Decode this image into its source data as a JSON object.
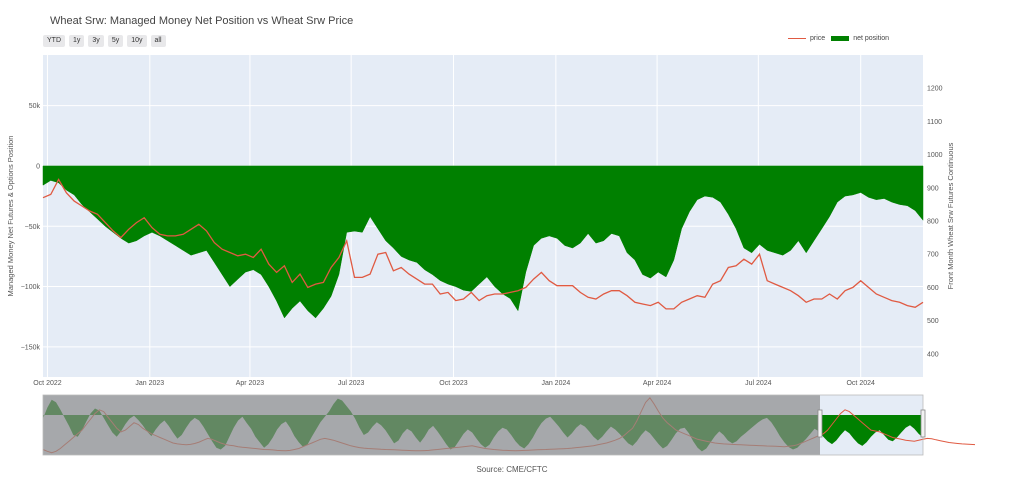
{
  "title": "Wheat Srw: Managed Money Net Position vs Wheat Srw Price",
  "range_buttons": [
    "YTD",
    "1y",
    "3y",
    "5y",
    "10y",
    "all"
  ],
  "legend": {
    "price": "price",
    "net": "net position"
  },
  "source": "Source: CME/CFTC",
  "colors": {
    "price": "#e05a42",
    "net": "#008000",
    "plot_bg": "#e5ecf6",
    "nav_mask": "#8c8c8c"
  },
  "chart_data": {
    "type": "area",
    "title": "Wheat Srw: Managed Money Net Position vs Wheat Srw Price",
    "ylabel": "Managed Money Net Futures & Options Position",
    "y2label": "Front Month Wheat Srw Futures Continuous",
    "xlim": [
      "2022-09-27",
      "2024-11-26"
    ],
    "ylim": [
      -175000,
      92000
    ],
    "y2lim": [
      330,
      1300
    ],
    "x_ticks": [
      "Oct 2022",
      "Jan 2023",
      "Apr 2023",
      "Jul 2023",
      "Oct 2023",
      "Jan 2024",
      "Apr 2024",
      "Jul 2024",
      "Oct 2024"
    ],
    "x_tick_dates": [
      "2022-10-01",
      "2023-01-01",
      "2023-04-01",
      "2023-07-01",
      "2023-10-01",
      "2024-01-01",
      "2024-04-01",
      "2024-07-01",
      "2024-10-01"
    ],
    "y_ticks": [
      50000,
      0,
      -50000,
      -100000,
      -150000
    ],
    "y_tick_labels": [
      "50k",
      "0",
      "−50k",
      "−100k",
      "−150k"
    ],
    "y2_ticks": [
      400,
      500,
      600,
      700,
      800,
      900,
      1000,
      1100,
      1200
    ],
    "dates": [
      "2022-09-27",
      "2022-10-04",
      "2022-10-11",
      "2022-10-18",
      "2022-10-25",
      "2022-11-01",
      "2022-11-08",
      "2022-11-15",
      "2022-11-22",
      "2022-11-29",
      "2022-12-06",
      "2022-12-13",
      "2022-12-20",
      "2022-12-27",
      "2023-01-03",
      "2023-01-10",
      "2023-01-17",
      "2023-01-24",
      "2023-01-31",
      "2023-02-07",
      "2023-02-14",
      "2023-02-21",
      "2023-02-28",
      "2023-03-07",
      "2023-03-14",
      "2023-03-21",
      "2023-03-28",
      "2023-04-04",
      "2023-04-11",
      "2023-04-18",
      "2023-04-25",
      "2023-05-02",
      "2023-05-09",
      "2023-05-16",
      "2023-05-23",
      "2023-05-30",
      "2023-06-06",
      "2023-06-13",
      "2023-06-20",
      "2023-06-27",
      "2023-07-04",
      "2023-07-11",
      "2023-07-18",
      "2023-07-25",
      "2023-08-01",
      "2023-08-08",
      "2023-08-15",
      "2023-08-22",
      "2023-08-29",
      "2023-09-05",
      "2023-09-12",
      "2023-09-19",
      "2023-09-26",
      "2023-10-03",
      "2023-10-10",
      "2023-10-17",
      "2023-10-24",
      "2023-10-31",
      "2023-11-07",
      "2023-11-14",
      "2023-11-21",
      "2023-11-28",
      "2023-12-05",
      "2023-12-12",
      "2023-12-19",
      "2023-12-26",
      "2024-01-02",
      "2024-01-09",
      "2024-01-16",
      "2024-01-23",
      "2024-01-30",
      "2024-02-06",
      "2024-02-13",
      "2024-02-20",
      "2024-02-27",
      "2024-03-05",
      "2024-03-12",
      "2024-03-19",
      "2024-03-26",
      "2024-04-02",
      "2024-04-09",
      "2024-04-16",
      "2024-04-23",
      "2024-04-30",
      "2024-05-07",
      "2024-05-14",
      "2024-05-21",
      "2024-05-28",
      "2024-06-04",
      "2024-06-11",
      "2024-06-18",
      "2024-06-25",
      "2024-07-02",
      "2024-07-09",
      "2024-07-16",
      "2024-07-23",
      "2024-07-30",
      "2024-08-06",
      "2024-08-13",
      "2024-08-20",
      "2024-08-27",
      "2024-09-03",
      "2024-09-10",
      "2024-09-17",
      "2024-09-24",
      "2024-10-01",
      "2024-10-08",
      "2024-10-15",
      "2024-10-22",
      "2024-10-29",
      "2024-11-05",
      "2024-11-12",
      "2024-11-19",
      "2024-11-26"
    ],
    "series": [
      {
        "name": "net position",
        "axis": "y",
        "values": [
          -16000,
          -12000,
          -14000,
          -20000,
          -24000,
          -32000,
          -38000,
          -44000,
          -50000,
          -55000,
          -60000,
          -64000,
          -62000,
          -58000,
          -55000,
          -58000,
          -62000,
          -66000,
          -70000,
          -74000,
          -72000,
          -70000,
          -80000,
          -90000,
          -100000,
          -94000,
          -88000,
          -86000,
          -90000,
          -100000,
          -112000,
          -126000,
          -118000,
          -112000,
          -120000,
          -126000,
          -118000,
          -108000,
          -90000,
          -55000,
          -54000,
          -55000,
          -42000,
          -52000,
          -62000,
          -68000,
          -75000,
          -78000,
          -80000,
          -86000,
          -90000,
          -95000,
          -98000,
          -100000,
          -103000,
          -104000,
          -98000,
          -92000,
          -100000,
          -106000,
          -110000,
          -120000,
          -88000,
          -66000,
          -60000,
          -58000,
          -60000,
          -66000,
          -68000,
          -64000,
          -56000,
          -64000,
          -62000,
          -56000,
          -58000,
          -72000,
          -78000,
          -90000,
          -93000,
          -88000,
          -92000,
          -78000,
          -52000,
          -38000,
          -28000,
          -25000,
          -26000,
          -30000,
          -40000,
          -52000,
          -68000,
          -72000,
          -65000,
          -70000,
          -72000,
          -74000,
          -70000,
          -62000,
          -72000,
          -62000,
          -52000,
          -42000,
          -30000,
          -25000,
          -24000,
          -22000,
          -26000,
          -28000,
          -27000,
          -30000,
          -32000,
          -33000,
          -37000,
          -45000
        ]
      },
      {
        "name": "price",
        "axis": "y2",
        "values": [
          870,
          880,
          925,
          885,
          860,
          845,
          830,
          820,
          795,
          770,
          750,
          775,
          795,
          810,
          780,
          760,
          755,
          755,
          760,
          775,
          790,
          770,
          735,
          715,
          705,
          695,
          700,
          690,
          715,
          670,
          645,
          665,
          615,
          640,
          600,
          610,
          615,
          660,
          690,
          740,
          630,
          630,
          640,
          700,
          705,
          650,
          660,
          640,
          625,
          610,
          610,
          580,
          585,
          560,
          565,
          585,
          560,
          575,
          580,
          580,
          585,
          590,
          600,
          625,
          645,
          620,
          605,
          605,
          605,
          585,
          570,
          565,
          580,
          590,
          590,
          575,
          555,
          550,
          545,
          555,
          535,
          535,
          555,
          565,
          575,
          570,
          610,
          620,
          660,
          665,
          685,
          670,
          700,
          620,
          610,
          600,
          590,
          575,
          555,
          565,
          565,
          580,
          565,
          590,
          600,
          620,
          600,
          580,
          570,
          560,
          555,
          545,
          540,
          555
        ]
      }
    ],
    "navigator": {
      "series": [
        {
          "name": "net position",
          "values": [
            -10000,
            20000,
            42000,
            35000,
            15000,
            -8000,
            -30000,
            -55000,
            -60000,
            -42000,
            -18000,
            5000,
            18000,
            12000,
            -8000,
            -28000,
            -48000,
            -60000,
            -45000,
            -25000,
            -10000,
            -2000,
            -14000,
            -28000,
            -45000,
            -58000,
            -40000,
            -25000,
            -15000,
            -30000,
            -48000,
            -65000,
            -55000,
            -35000,
            -18000,
            -8000,
            -15000,
            -32000,
            -52000,
            -72000,
            -90000,
            -95000,
            -85000,
            -60000,
            -35000,
            -15000,
            -5000,
            -22000,
            -38000,
            -60000,
            -75000,
            -90000,
            -80000,
            -62000,
            -40000,
            -25000,
            -18000,
            -35000,
            -58000,
            -75000,
            -88000,
            -82000,
            -60000,
            -40000,
            -20000,
            -5000,
            10000,
            30000,
            45000,
            40000,
            25000,
            10000,
            -10000,
            -35000,
            -55000,
            -48000,
            -32000,
            -20000,
            -28000,
            -42000,
            -60000,
            -78000,
            -70000,
            -50000,
            -38000,
            -45000,
            -62000,
            -76000,
            -60000,
            -40000,
            -30000,
            -45000,
            -62000,
            -80000,
            -95000,
            -88000,
            -70000,
            -52000,
            -40000,
            -48000,
            -65000,
            -80000,
            -90000,
            -82000,
            -62000,
            -45000,
            -35000,
            -40000,
            -55000,
            -72000,
            -85000,
            -92000,
            -80000,
            -62000,
            -40000,
            -22000,
            -10000,
            -5000,
            -18000,
            -32000,
            -48000,
            -62000,
            -50000,
            -35000,
            -25000,
            -32000,
            -45000,
            -60000,
            -70000,
            -60000,
            -45000,
            -32000,
            -40000,
            -52000,
            -65000,
            -78000,
            -85000,
            -72000,
            -55000,
            -42000,
            -50000,
            -65000,
            -80000,
            -92000,
            -85000,
            -68000,
            -50000,
            -38000,
            -35000,
            -50000,
            -72000,
            -90000,
            -100000,
            -92000,
            -75000,
            -58000,
            -45000,
            -55000,
            -70000,
            -78000,
            -72000,
            -60000,
            -50000,
            -40000,
            -30000,
            -20000,
            -12000,
            -8000,
            -20000,
            -38000,
            -58000,
            -75000,
            -88000,
            -95000,
            -90000,
            -78000,
            -66000,
            -52000,
            -38000,
            -45000,
            -60000,
            -72000,
            -80000,
            -70000,
            -55000,
            -42000,
            -50000,
            -65000,
            -78000,
            -85000,
            -75000,
            -60000,
            -48000,
            -42000,
            -55000,
            -68000,
            -72000,
            -62000,
            -48000,
            -35000,
            -28000,
            -38000,
            -52000,
            -62000
          ]
        },
        {
          "name": "price",
          "values": [
            490,
            470,
            455,
            470,
            500,
            540,
            580,
            620,
            660,
            700,
            760,
            820,
            880,
            920,
            900,
            840,
            780,
            720,
            680,
            700,
            740,
            780,
            760,
            720,
            690,
            660,
            640,
            620,
            600,
            580,
            560,
            550,
            545,
            540,
            545,
            555,
            570,
            590,
            610,
            600,
            580,
            560,
            545,
            535,
            530,
            520,
            515,
            510,
            505,
            500,
            495,
            490,
            488,
            485,
            480,
            478,
            476,
            480,
            490,
            500,
            520,
            540,
            560,
            580,
            600,
            610,
            600,
            590,
            575,
            560,
            545,
            530,
            520,
            510,
            505,
            500,
            498,
            495,
            492,
            490,
            488,
            486,
            484,
            482,
            480,
            478,
            476,
            475,
            478,
            480,
            485,
            490,
            495,
            500,
            505,
            510,
            515,
            520,
            525,
            530,
            520,
            510,
            500,
            495,
            490,
            485,
            482,
            480,
            478,
            476,
            478,
            480,
            482,
            484,
            486,
            488,
            490,
            492,
            494,
            496,
            498,
            500,
            505,
            510,
            515,
            520,
            525,
            530,
            540,
            550,
            560,
            575,
            590,
            610,
            640,
            680,
            720,
            800,
            900,
            1000,
            1050,
            980,
            900,
            830,
            780,
            740,
            700,
            680,
            660,
            640,
            620,
            600,
            590,
            580,
            570,
            560,
            555,
            550,
            548,
            545,
            543,
            540,
            538,
            536,
            534,
            532,
            530,
            528,
            526,
            524,
            522,
            520,
            525,
            530,
            540,
            560,
            580,
            600,
            620,
            640,
            660,
            700,
            760,
            820,
            880,
            920,
            900,
            860,
            820,
            780,
            740,
            700,
            690,
            680,
            660,
            640,
            620,
            610,
            600,
            590,
            585,
            580,
            590,
            600,
            610,
            605,
            595,
            585,
            575,
            565,
            560,
            555,
            550,
            548,
            545,
            543
          ]
        }
      ],
      "selected_range": [
        "2022-09-27",
        "2024-11-26"
      ]
    }
  }
}
